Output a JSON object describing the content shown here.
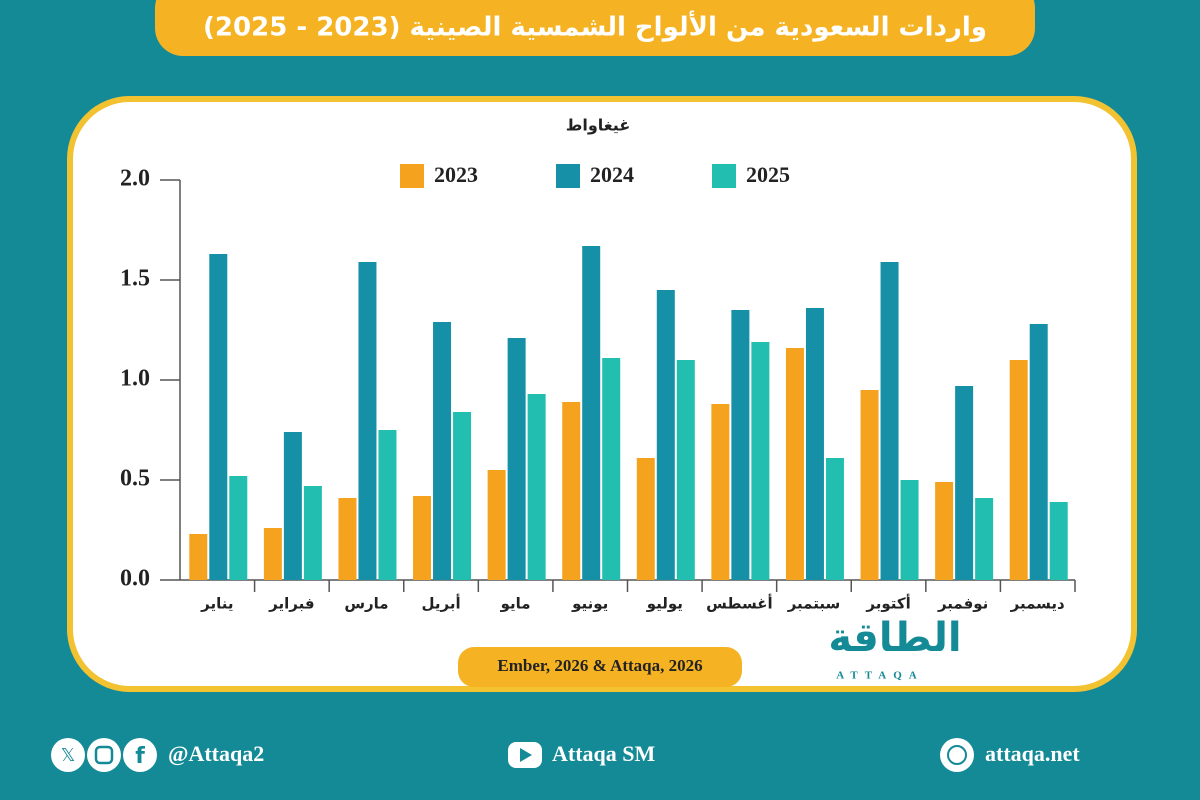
{
  "chart_data": {
    "type": "bar",
    "title": "واردات السعودية من الألواح الشمسية الصينية (2023 - 2025)",
    "unit_label": "غيغاواط",
    "source": "Ember, 2026 & Attaqa, 2026",
    "categories": [
      "يناير",
      "فبراير",
      "مارس",
      "أبريل",
      "مايو",
      "يونيو",
      "يوليو",
      "أغسطس",
      "سبتمبر",
      "أكتوبر",
      "نوفمبر",
      "ديسمبر"
    ],
    "series": [
      {
        "name": "2023",
        "color": "#f5a31f",
        "values": [
          0.23,
          0.26,
          0.41,
          0.42,
          0.55,
          0.89,
          0.61,
          0.88,
          1.16,
          0.95,
          0.49,
          1.1
        ]
      },
      {
        "name": "2024",
        "color": "#1690a6",
        "values": [
          1.63,
          0.74,
          1.59,
          1.29,
          1.21,
          1.67,
          1.45,
          1.35,
          1.36,
          1.59,
          0.97,
          1.28
        ]
      },
      {
        "name": "2025",
        "color": "#22bfb0",
        "values": [
          0.52,
          0.47,
          0.75,
          0.84,
          0.93,
          1.11,
          1.1,
          1.19,
          0.61,
          0.5,
          0.41,
          0.39
        ]
      }
    ],
    "ylim": [
      0,
      2
    ],
    "yticks": [
      {
        "value": 0,
        "label": "0.0"
      },
      0.5,
      {
        "value": 1,
        "label": "1.0"
      },
      1.5,
      {
        "value": 2,
        "label": "2.0"
      }
    ],
    "grid": false
  },
  "logo": {
    "text": "الطاقة",
    "subtext": "ATTAQA"
  },
  "footer": {
    "social": "@Attaqa2",
    "youtube": "Attaqa SM",
    "website": "attaqa.net"
  }
}
